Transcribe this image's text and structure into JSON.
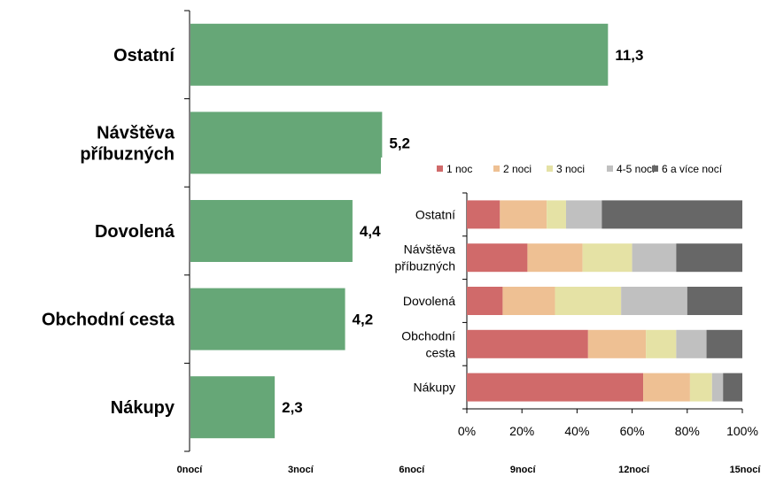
{
  "chart_data": [
    {
      "type": "bar",
      "orientation": "horizontal",
      "categories": [
        "Ostatní",
        "Návštěva příbuzných",
        "Dovolená",
        "Obchodní cesta",
        "Nákupy"
      ],
      "category_lines": [
        [
          "Ostatní"
        ],
        [
          "Návštěva",
          "příbuzných"
        ],
        [
          "Dovolená"
        ],
        [
          "Obchodní cesta"
        ],
        [
          "Nákupy"
        ]
      ],
      "values": [
        11.3,
        5.2,
        4.4,
        4.2,
        2.3
      ],
      "value_labels": [
        "11,3",
        "5,2",
        "4,4",
        "4,2",
        "2,3"
      ],
      "xlim": [
        0,
        15
      ],
      "x_ticks": [
        0,
        3,
        6,
        9,
        12,
        15
      ],
      "x_tick_labels": [
        "0nocí",
        "3nocí",
        "6nocí",
        "9nocí",
        "12nocí",
        "15nocí"
      ],
      "bar_color": "#66a777",
      "grid": false
    },
    {
      "type": "bar",
      "orientation": "horizontal",
      "stacked": "percent",
      "categories": [
        "Ostatní",
        "Návštěva příbuzných",
        "Dovolená",
        "Obchodní cesta",
        "Nákupy"
      ],
      "category_lines": [
        [
          "Ostatní"
        ],
        [
          "Návštěva",
          "příbuzných"
        ],
        [
          "Dovolená"
        ],
        [
          "Obchodní",
          "cesta"
        ],
        [
          "Nákupy"
        ]
      ],
      "series": [
        {
          "name": "1 noc",
          "color": "#d06a6a",
          "values": [
            12,
            22,
            13,
            44,
            64
          ]
        },
        {
          "name": "2 noci",
          "color": "#eec093",
          "values": [
            17,
            20,
            19,
            21,
            17
          ]
        },
        {
          "name": "3 noci",
          "color": "#e5e2a5",
          "values": [
            7,
            18,
            24,
            11,
            8
          ]
        },
        {
          "name": "4-5 nocí",
          "color": "#c0c0c0",
          "values": [
            13,
            16,
            24,
            11,
            4
          ]
        },
        {
          "name": "6 a více nocí",
          "color": "#676767",
          "values": [
            51,
            24,
            20,
            13,
            7
          ]
        }
      ],
      "xlim": [
        0,
        100
      ],
      "x_ticks": [
        0,
        20,
        40,
        60,
        80,
        100
      ],
      "x_tick_labels": [
        "0%",
        "20%",
        "40%",
        "60%",
        "80%",
        "100%"
      ],
      "legend_position": "top",
      "grid": false
    }
  ]
}
